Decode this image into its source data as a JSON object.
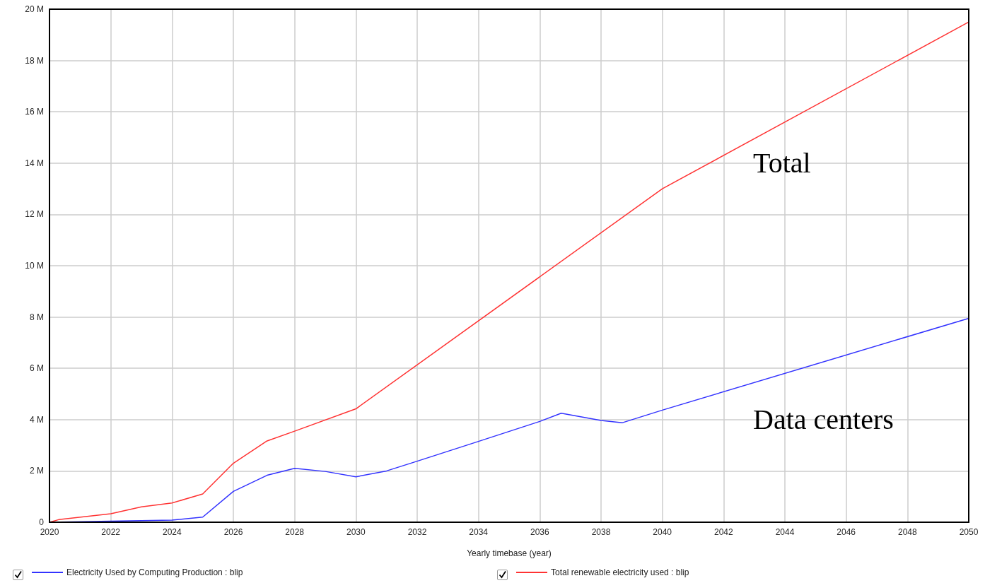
{
  "chart_data": {
    "type": "line",
    "xlabel": "Yearly timebase (year)",
    "series": [
      {
        "name": "Electricity Used by Computing Production : blip",
        "color": "#3333ff",
        "x": [
          2020,
          2022,
          2024,
          2025,
          2026,
          2027.1,
          2028,
          2029,
          2030,
          2031,
          2032,
          2034,
          2036,
          2036.7,
          2038,
          2038.7,
          2040,
          2050
        ],
        "values": [
          0,
          0.04,
          0.08,
          0.2,
          1.2,
          1.83,
          2.1,
          1.98,
          1.77,
          2.0,
          2.38,
          3.15,
          3.93,
          4.25,
          3.97,
          3.88,
          4.37,
          7.95
        ]
      },
      {
        "name": "Total renewable electricity used : blip",
        "color": "#ff3333",
        "x": [
          2020,
          2020.3,
          2022,
          2023,
          2024,
          2025,
          2026,
          2027.1,
          2028,
          2030,
          2040,
          2050
        ],
        "values": [
          0,
          0.1,
          0.33,
          0.6,
          0.75,
          1.1,
          2.3,
          3.17,
          3.55,
          4.42,
          13.0,
          19.5
        ]
      }
    ],
    "xlim": [
      2020,
      2050
    ],
    "xticks": [
      2020,
      2022,
      2024,
      2026,
      2028,
      2030,
      2032,
      2034,
      2036,
      2038,
      2040,
      2042,
      2044,
      2046,
      2048,
      2050
    ],
    "ylim": [
      0,
      20
    ],
    "yticks": [
      {
        "value": 0,
        "label": "0"
      },
      {
        "value": 2,
        "label": "2 M"
      },
      {
        "value": 4,
        "label": "4 M"
      },
      {
        "value": 6,
        "label": "6 M"
      },
      {
        "value": 8,
        "label": "8 M"
      },
      {
        "value": 10,
        "label": "10 M"
      },
      {
        "value": 12,
        "label": "12 M"
      },
      {
        "value": 14,
        "label": "14 M"
      },
      {
        "value": 16,
        "label": "16 M"
      },
      {
        "value": 18,
        "label": "18 M"
      },
      {
        "value": 20,
        "label": "20 M"
      }
    ],
    "annotations": [
      "Total",
      "Data centers"
    ],
    "grid": true,
    "legend": "bottom",
    "marker": "none",
    "line_style": "solid"
  }
}
